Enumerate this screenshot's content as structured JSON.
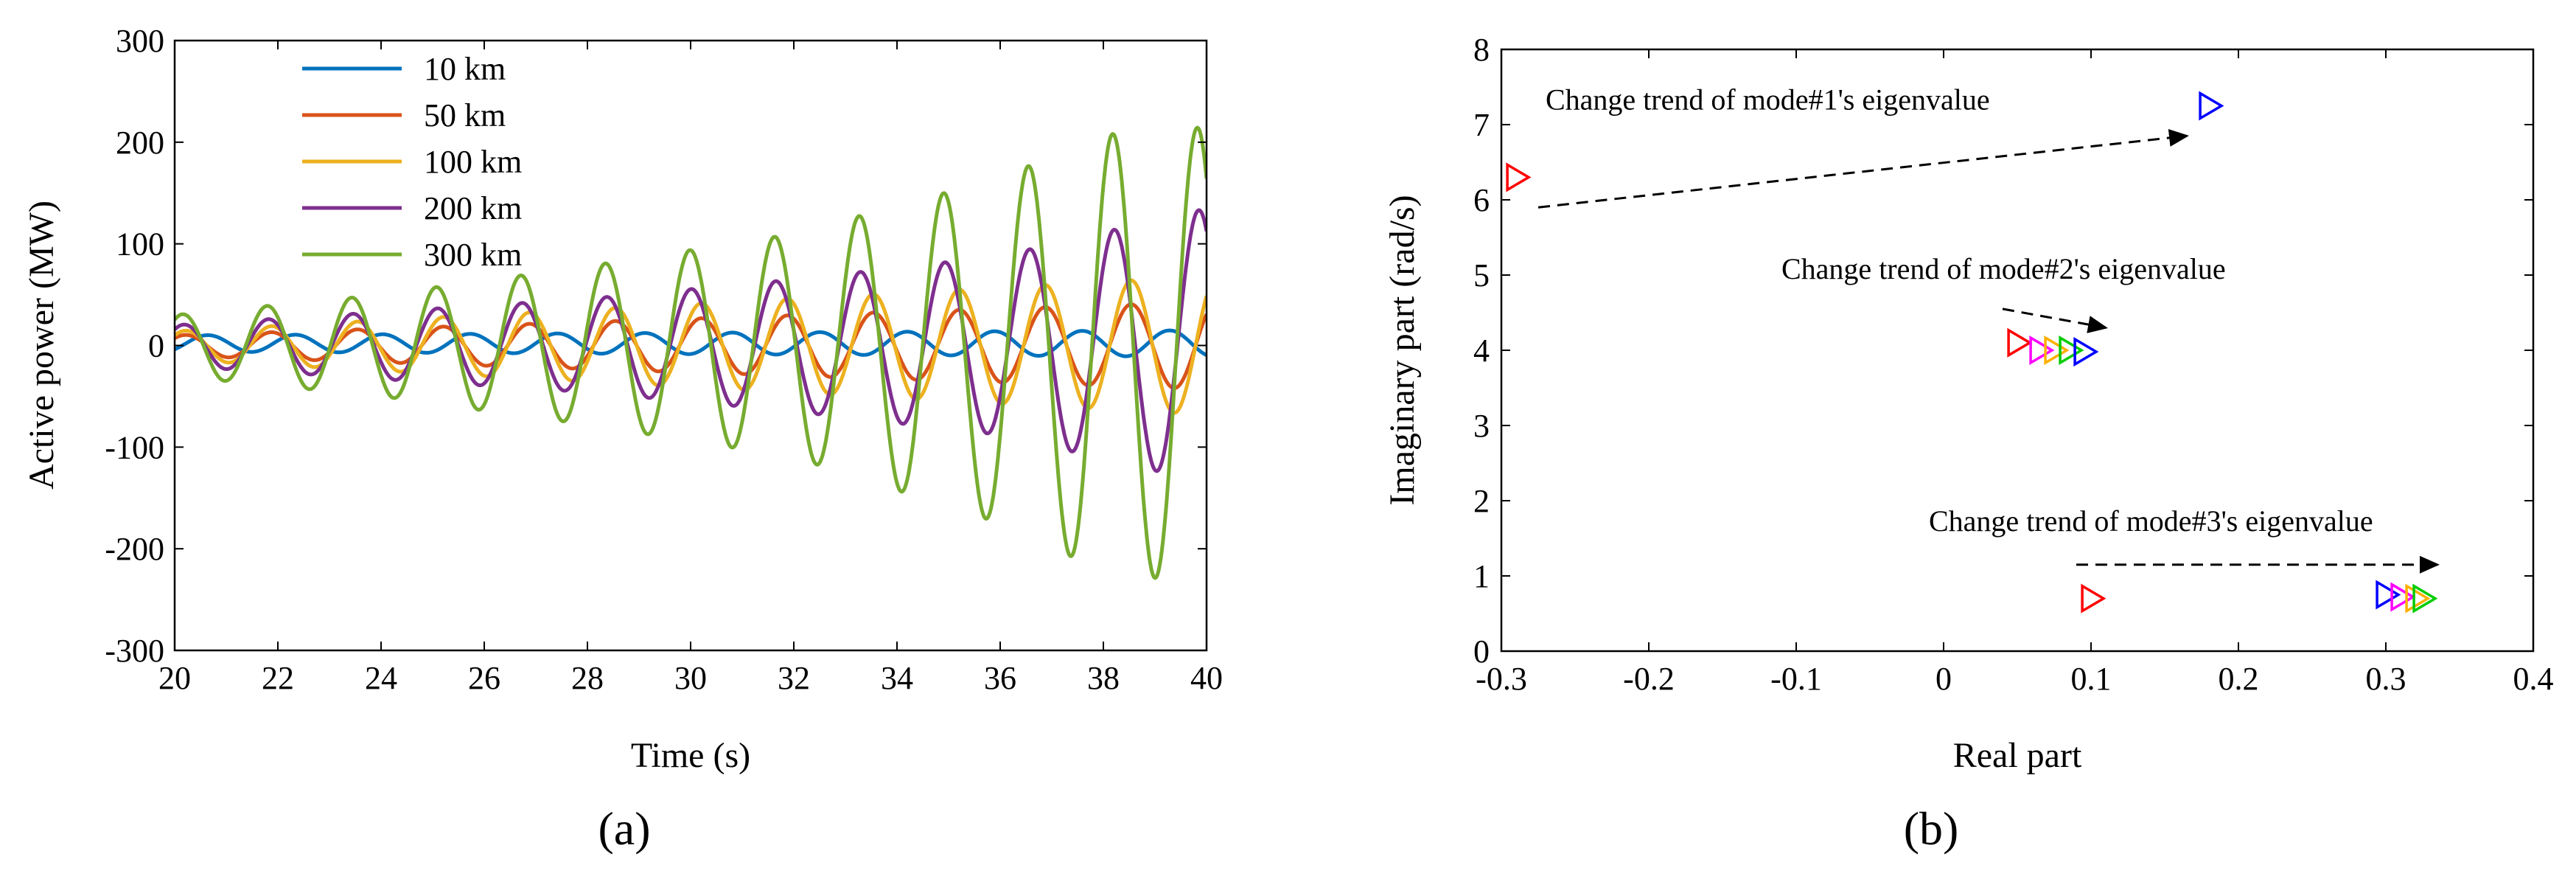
{
  "chart_data": [
    {
      "type": "line",
      "panel_label": "(a)",
      "xlabel": "Time (s)",
      "ylabel": "Active power (MW)",
      "xlim": [
        20,
        40
      ],
      "ylim": [
        -300,
        300
      ],
      "xticks": [
        "20",
        "22",
        "24",
        "26",
        "28",
        "30",
        "32",
        "34",
        "36",
        "38",
        "40"
      ],
      "yticks": [
        "-300",
        "-200",
        "-100",
        "0",
        "100",
        "200",
        "300"
      ],
      "x_sample_range": [
        20,
        40
      ],
      "series": [
        {
          "name": "10 km",
          "color": "#0072BD",
          "freq_hz": 0.59,
          "phase": -0.8,
          "envelope": {
            "t": [
              20,
              40
            ],
            "amp": [
              8,
              13
            ]
          },
          "offset": {
            "t": [
              20,
              40
            ],
            "val": [
              2,
              2
            ]
          }
        },
        {
          "name": "50 km",
          "color": "#D95319",
          "freq_hz": 0.6,
          "phase": 0.8,
          "envelope": {
            "t": [
              20,
              40
            ],
            "amp": [
              10,
              43
            ]
          },
          "offset": {
            "t": [
              20,
              40
            ],
            "val": [
              0,
              0
            ]
          }
        },
        {
          "name": "100 km",
          "color": "#EDB120",
          "freq_hz": 0.6,
          "phase": 0.8,
          "envelope": {
            "t": [
              20,
              40
            ],
            "amp": [
              14,
              68
            ]
          },
          "offset": {
            "t": [
              20,
              40
            ],
            "val": [
              0,
              0
            ]
          }
        },
        {
          "name": "200 km",
          "color": "#7E2F8E",
          "freq_hz": 0.61,
          "phase": 0.9,
          "envelope": {
            "t": [
              20,
              24,
              28,
              32,
              36,
              40
            ],
            "amp": [
              20,
              33,
              46,
              65,
              88,
              135
            ]
          },
          "offset": {
            "t": [
              20,
              40
            ],
            "val": [
              0,
              0
            ]
          }
        },
        {
          "name": "300 km",
          "color": "#77AC30",
          "freq_hz": 0.61,
          "phase": 1.0,
          "envelope": {
            "t": [
              20,
              24,
              28,
              32,
              36,
              38,
              40
            ],
            "amp": [
              30,
              50,
              78,
              110,
              170,
              215,
              225
            ]
          },
          "offset": {
            "t": [
              20,
              24,
              28,
              32,
              36,
              40
            ],
            "val": [
              0,
              0,
              0,
              0,
              -5,
              -10
            ]
          }
        }
      ]
    },
    {
      "type": "scatter",
      "panel_label": "(b)",
      "xlabel": "Real part",
      "ylabel": "Imaginary part (rad/s)",
      "xlim": [
        -0.3,
        0.4
      ],
      "ylim": [
        0,
        8
      ],
      "xticks": [
        "-0.3",
        "-0.2",
        "-0.1",
        "0",
        "0.1",
        "0.2",
        "0.3",
        "0.4"
      ],
      "yticks": [
        "0",
        "1",
        "2",
        "3",
        "4",
        "5",
        "6",
        "7",
        "8"
      ],
      "marker": "triangle-right",
      "points": [
        {
          "x": -0.29,
          "y": 6.3,
          "color": "#FF0000"
        },
        {
          "x": 0.18,
          "y": 7.25,
          "color": "#0000FF"
        },
        {
          "x": 0.05,
          "y": 4.1,
          "color": "#FF0000"
        },
        {
          "x": 0.065,
          "y": 4.0,
          "color": "#FF00FF"
        },
        {
          "x": 0.075,
          "y": 4.0,
          "color": "#FFB000"
        },
        {
          "x": 0.085,
          "y": 4.0,
          "color": "#00CC00"
        },
        {
          "x": 0.095,
          "y": 3.98,
          "color": "#0000FF"
        },
        {
          "x": 0.1,
          "y": 0.7,
          "color": "#FF0000"
        },
        {
          "x": 0.3,
          "y": 0.75,
          "color": "#0000FF"
        },
        {
          "x": 0.31,
          "y": 0.72,
          "color": "#FF00FF"
        },
        {
          "x": 0.32,
          "y": 0.7,
          "color": "#FFB000"
        },
        {
          "x": 0.325,
          "y": 0.7,
          "color": "#00CC00"
        }
      ],
      "annotations": [
        {
          "text": "Change trend of mode#1's eigenvalue",
          "label_at": [
            -0.27,
            7.2
          ],
          "arrow_from": [
            -0.275,
            5.9
          ],
          "arrow_to": [
            0.165,
            6.85
          ]
        },
        {
          "text": "Change trend of mode#2's eigenvalue",
          "label_at": [
            -0.11,
            4.95
          ],
          "arrow_from": [
            0.04,
            4.55
          ],
          "arrow_to": [
            0.11,
            4.3
          ]
        },
        {
          "text": "Change trend of mode#3's eigenvalue",
          "label_at": [
            -0.01,
            1.6
          ],
          "arrow_from": [
            0.09,
            1.15
          ],
          "arrow_to": [
            0.335,
            1.15
          ]
        }
      ]
    }
  ]
}
